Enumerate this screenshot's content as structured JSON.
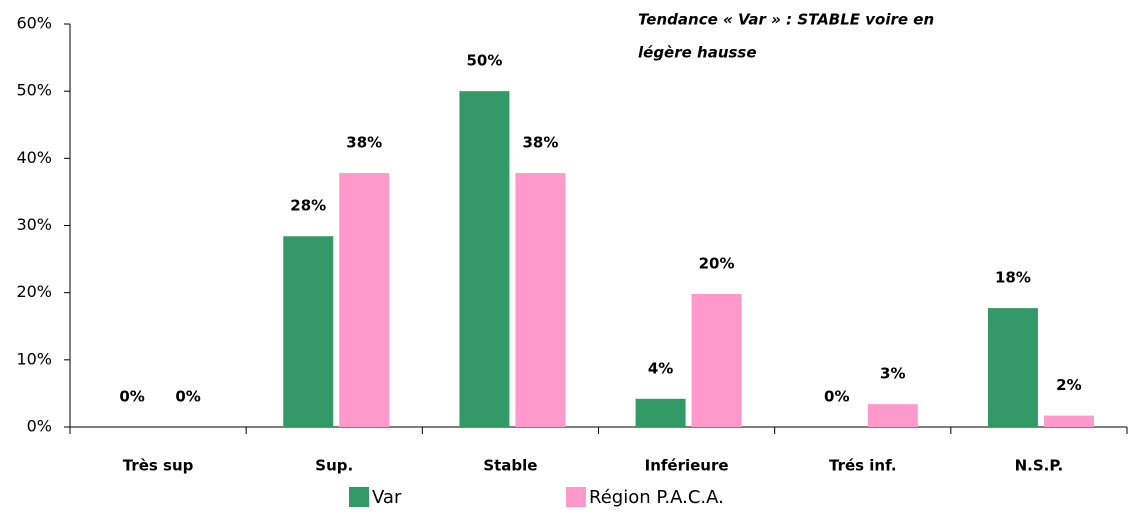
{
  "chart_data": {
    "type": "bar",
    "annotation": [
      "Tendance « Var » : STABLE voire en",
      "légère hausse"
    ],
    "categories": [
      "Très sup",
      "Sup.",
      "Stable",
      "Inférieure",
      "Trés inf.",
      "N.S.P."
    ],
    "series": [
      {
        "name": "Var",
        "color": "#339966",
        "values": [
          0,
          28.4,
          50,
          4.2,
          0,
          17.7
        ],
        "value_labels": [
          "0%",
          "28%",
          "50%",
          "4%",
          "0%",
          "18%"
        ]
      },
      {
        "name": "Région P.A.C.A.",
        "color": "#ff99cc",
        "values": [
          0,
          37.8,
          37.8,
          19.8,
          3.4,
          1.7
        ],
        "value_labels": [
          "0%",
          "38%",
          "38%",
          "20%",
          "3%",
          "2%"
        ]
      }
    ],
    "ylim": [
      0,
      60
    ],
    "yticks": [
      {
        "value": 0,
        "label": "0%"
      },
      {
        "value": 10,
        "label": "10%"
      },
      {
        "value": 20,
        "label": "20%"
      },
      {
        "value": 30,
        "label": "30%"
      },
      {
        "value": 40,
        "label": "40%"
      },
      {
        "value": 50,
        "label": "50%"
      },
      {
        "value": 60,
        "label": "60%"
      }
    ],
    "grid": false,
    "legend": "bottom"
  }
}
